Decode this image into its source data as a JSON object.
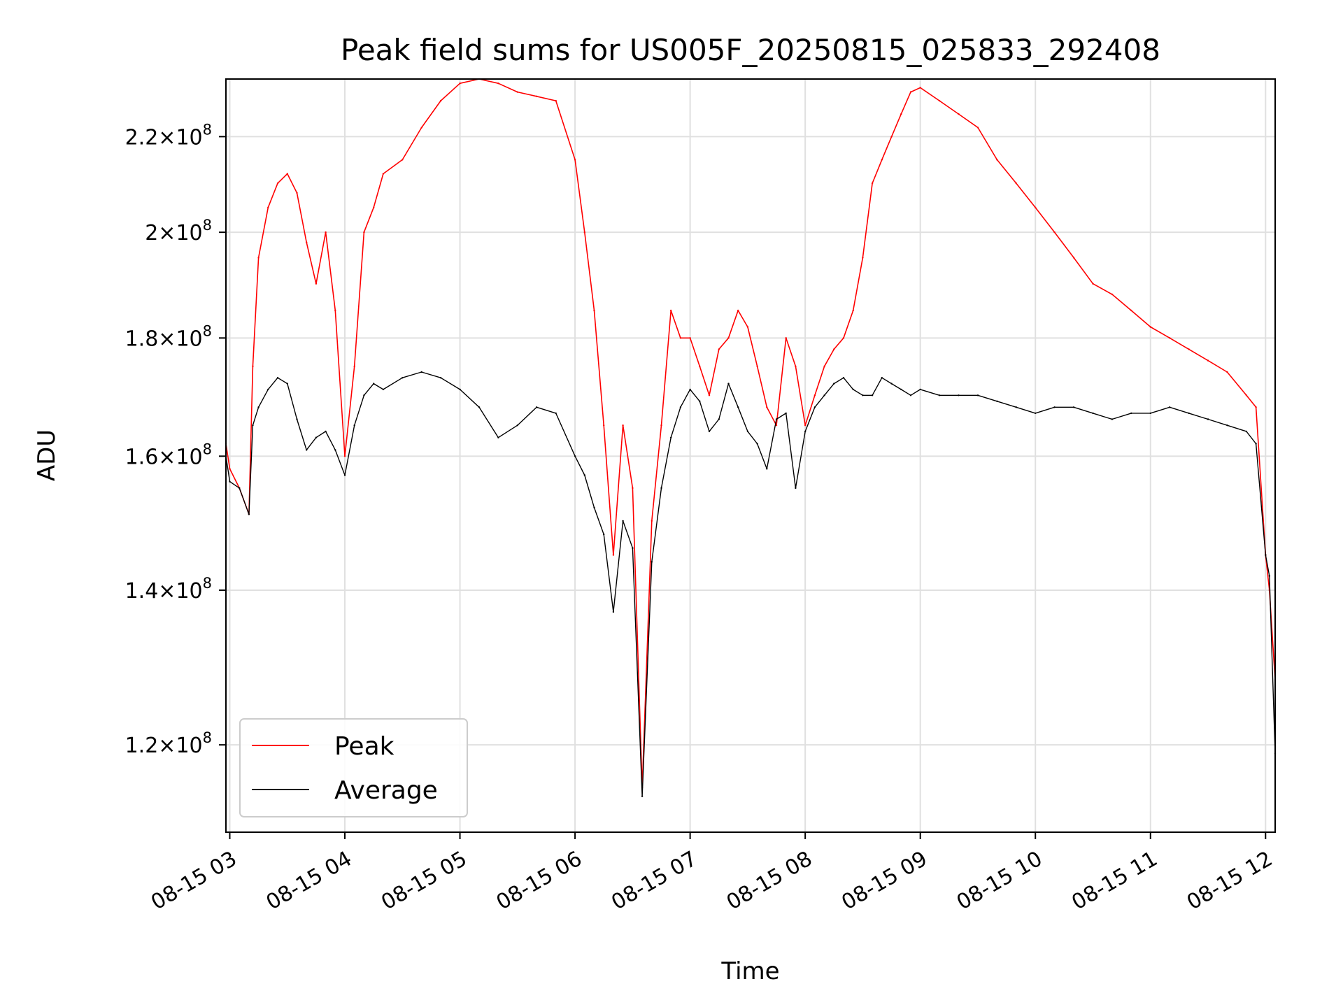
{
  "chart_data": {
    "type": "line",
    "title": "Peak field sums for US005F_20250815_025833_292408",
    "xlabel": "Time",
    "ylabel": "ADU",
    "y_scale": "log",
    "ylim": [
      110000000,
      233000000
    ],
    "xlim": [
      "08-15 02:58",
      "08-15 12:05"
    ],
    "grid": true,
    "legend_position": "lower-left",
    "x_ticks": [
      "08-15 03",
      "08-15 04",
      "08-15 05",
      "08-15 06",
      "08-15 07",
      "08-15 08",
      "08-15 09",
      "08-15 10",
      "08-15 11",
      "08-15 12"
    ],
    "y_ticks": [
      {
        "value": 120000000,
        "mantissa": "1.2",
        "exponent": "8"
      },
      {
        "value": 140000000,
        "mantissa": "1.4",
        "exponent": "8"
      },
      {
        "value": 160000000,
        "mantissa": "1.6",
        "exponent": "8"
      },
      {
        "value": 180000000,
        "mantissa": "1.8",
        "exponent": "8"
      },
      {
        "value": 200000000,
        "mantissa": "2",
        "exponent": "8"
      },
      {
        "value": 220000000,
        "mantissa": "2.2",
        "exponent": "8"
      }
    ],
    "series": [
      {
        "name": "Peak",
        "color": "#ff0000",
        "x": [
          "08-15 02:58",
          "08-15 03:00",
          "08-15 03:05",
          "08-15 03:10",
          "08-15 03:12",
          "08-15 03:15",
          "08-15 03:20",
          "08-15 03:25",
          "08-15 03:30",
          "08-15 03:35",
          "08-15 03:40",
          "08-15 03:45",
          "08-15 03:50",
          "08-15 03:55",
          "08-15 04:00",
          "08-15 04:05",
          "08-15 04:10",
          "08-15 04:15",
          "08-15 04:20",
          "08-15 04:30",
          "08-15 04:40",
          "08-15 04:50",
          "08-15 05:00",
          "08-15 05:10",
          "08-15 05:20",
          "08-15 05:30",
          "08-15 05:40",
          "08-15 05:50",
          "08-15 06:00",
          "08-15 06:05",
          "08-15 06:10",
          "08-15 06:15",
          "08-15 06:20",
          "08-15 06:25",
          "08-15 06:30",
          "08-15 06:35",
          "08-15 06:40",
          "08-15 06:45",
          "08-15 06:50",
          "08-15 06:55",
          "08-15 07:00",
          "08-15 07:05",
          "08-15 07:10",
          "08-15 07:15",
          "08-15 07:20",
          "08-15 07:25",
          "08-15 07:30",
          "08-15 07:35",
          "08-15 07:40",
          "08-15 07:45",
          "08-15 07:50",
          "08-15 07:55",
          "08-15 08:00",
          "08-15 08:05",
          "08-15 08:10",
          "08-15 08:15",
          "08-15 08:20",
          "08-15 08:25",
          "08-15 08:30",
          "08-15 08:35",
          "08-15 08:40",
          "08-15 08:45",
          "08-15 08:50",
          "08-15 08:55",
          "08-15 09:00",
          "08-15 09:10",
          "08-15 09:20",
          "08-15 09:30",
          "08-15 09:40",
          "08-15 09:50",
          "08-15 10:00",
          "08-15 10:10",
          "08-15 10:20",
          "08-15 10:30",
          "08-15 10:40",
          "08-15 10:50",
          "08-15 11:00",
          "08-15 11:10",
          "08-15 11:20",
          "08-15 11:30",
          "08-15 11:40",
          "08-15 11:50",
          "08-15 11:55",
          "08-15 12:00",
          "08-15 12:02",
          "08-15 12:05"
        ],
        "y": [
          162000000,
          158000000,
          155000000,
          151000000,
          175000000,
          195000000,
          205000000,
          210000000,
          212000000,
          208000000,
          198000000,
          190000000,
          200000000,
          185000000,
          160000000,
          175000000,
          200000000,
          205000000,
          212000000,
          215000000,
          222000000,
          228000000,
          232000000,
          233000000,
          232000000,
          230000000,
          229000000,
          228000000,
          215000000,
          200000000,
          185000000,
          165000000,
          145000000,
          165000000,
          155000000,
          115000000,
          150000000,
          165000000,
          185000000,
          180000000,
          180000000,
          175000000,
          170000000,
          178000000,
          180000000,
          185000000,
          182000000,
          175000000,
          168000000,
          165000000,
          180000000,
          175000000,
          165000000,
          170000000,
          175000000,
          178000000,
          180000000,
          185000000,
          195000000,
          210000000,
          215000000,
          220000000,
          225000000,
          230000000,
          231000000,
          228000000,
          225000000,
          222000000,
          215000000,
          210000000,
          205000000,
          200000000,
          195000000,
          190000000,
          188000000,
          185000000,
          182000000,
          180000000,
          178000000,
          176000000,
          174000000,
          170000000,
          168000000,
          145000000,
          140000000,
          128000000
        ]
      },
      {
        "name": "Average",
        "color": "#000000",
        "x": [
          "08-15 02:58",
          "08-15 03:00",
          "08-15 03:05",
          "08-15 03:10",
          "08-15 03:12",
          "08-15 03:15",
          "08-15 03:20",
          "08-15 03:25",
          "08-15 03:30",
          "08-15 03:35",
          "08-15 03:40",
          "08-15 03:45",
          "08-15 03:50",
          "08-15 03:55",
          "08-15 04:00",
          "08-15 04:05",
          "08-15 04:10",
          "08-15 04:15",
          "08-15 04:20",
          "08-15 04:30",
          "08-15 04:40",
          "08-15 04:50",
          "08-15 05:00",
          "08-15 05:10",
          "08-15 05:20",
          "08-15 05:30",
          "08-15 05:40",
          "08-15 05:50",
          "08-15 06:00",
          "08-15 06:05",
          "08-15 06:10",
          "08-15 06:15",
          "08-15 06:20",
          "08-15 06:25",
          "08-15 06:30",
          "08-15 06:35",
          "08-15 06:40",
          "08-15 06:45",
          "08-15 06:50",
          "08-15 06:55",
          "08-15 07:00",
          "08-15 07:05",
          "08-15 07:10",
          "08-15 07:15",
          "08-15 07:20",
          "08-15 07:25",
          "08-15 07:30",
          "08-15 07:35",
          "08-15 07:40",
          "08-15 07:45",
          "08-15 07:50",
          "08-15 07:55",
          "08-15 08:00",
          "08-15 08:05",
          "08-15 08:10",
          "08-15 08:15",
          "08-15 08:20",
          "08-15 08:25",
          "08-15 08:30",
          "08-15 08:35",
          "08-15 08:40",
          "08-15 08:45",
          "08-15 08:50",
          "08-15 08:55",
          "08-15 09:00",
          "08-15 09:10",
          "08-15 09:20",
          "08-15 09:30",
          "08-15 09:40",
          "08-15 09:50",
          "08-15 10:00",
          "08-15 10:10",
          "08-15 10:20",
          "08-15 10:30",
          "08-15 10:40",
          "08-15 10:50",
          "08-15 11:00",
          "08-15 11:10",
          "08-15 11:20",
          "08-15 11:30",
          "08-15 11:40",
          "08-15 11:50",
          "08-15 11:55",
          "08-15 12:00",
          "08-15 12:02",
          "08-15 12:05"
        ],
        "y": [
          160000000,
          156000000,
          155000000,
          151000000,
          165000000,
          168000000,
          171000000,
          173000000,
          172000000,
          166000000,
          161000000,
          163000000,
          164000000,
          161000000,
          157000000,
          165000000,
          170000000,
          172000000,
          171000000,
          173000000,
          174000000,
          173000000,
          171000000,
          168000000,
          163000000,
          165000000,
          168000000,
          167000000,
          160000000,
          157000000,
          152000000,
          148000000,
          137000000,
          150000000,
          146000000,
          114000000,
          144000000,
          155000000,
          163000000,
          168000000,
          171000000,
          169000000,
          164000000,
          166000000,
          172000000,
          168000000,
          164000000,
          162000000,
          158000000,
          166000000,
          167000000,
          155000000,
          164000000,
          168000000,
          170000000,
          172000000,
          173000000,
          171000000,
          170000000,
          170000000,
          173000000,
          172000000,
          171000000,
          170000000,
          171000000,
          170000000,
          170000000,
          170000000,
          169000000,
          168000000,
          167000000,
          168000000,
          168000000,
          167000000,
          166000000,
          167000000,
          167000000,
          168000000,
          167000000,
          166000000,
          165000000,
          164000000,
          162000000,
          145000000,
          142000000,
          119000000
        ]
      }
    ]
  }
}
